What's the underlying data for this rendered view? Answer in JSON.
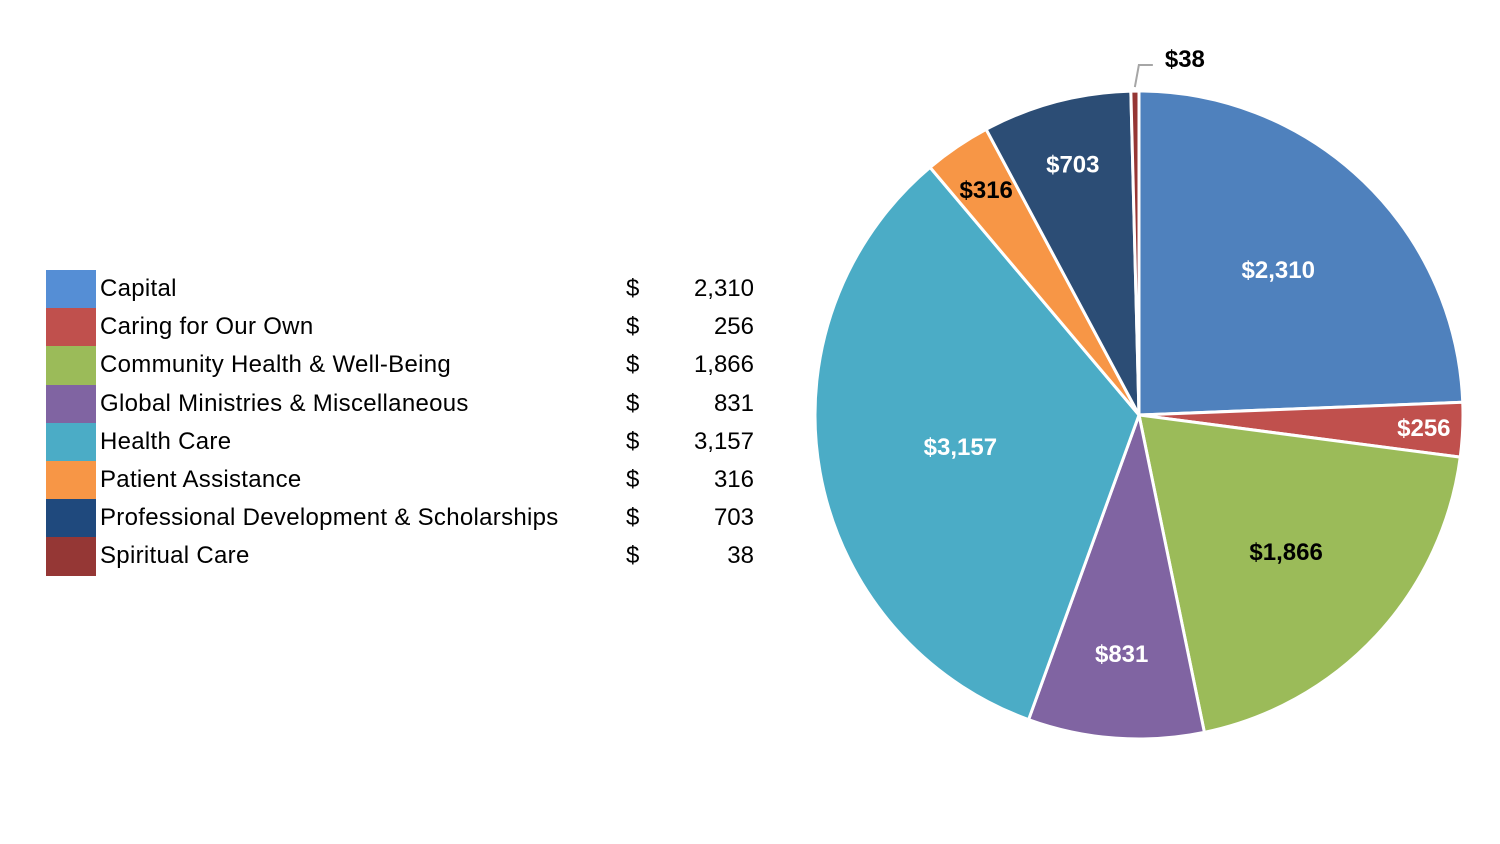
{
  "chart_data": {
    "type": "pie",
    "title": "",
    "categories": [
      "Capital",
      "Caring for Our Own",
      "Community Health & Well-Being",
      "Global Ministries & Miscellaneous",
      "Health Care",
      "Patient Assistance",
      "Professional Development & Scholarships",
      "Spiritual Care"
    ],
    "values": [
      2310,
      256,
      1866,
      831,
      3157,
      316,
      703,
      38
    ],
    "slice_labels": [
      "$2,310",
      "$256",
      "$1,866",
      "$831",
      "$3,157",
      "$316",
      "$703",
      "$38"
    ],
    "slice_label_colors": [
      "#ffffff",
      "#ffffff",
      "#000000",
      "#ffffff",
      "#ffffff",
      "#000000",
      "#ffffff",
      "#000000"
    ],
    "colors": [
      "#4f81bd",
      "#c0504d",
      "#9bbb59",
      "#8064a2",
      "#4bacc6",
      "#f79646",
      "#2c4d75",
      "#963634"
    ],
    "legend_placement": "left",
    "legend": {
      "currency_symbol": "$",
      "display_values": [
        "2,310",
        "256",
        "1,866",
        "831",
        "3,157",
        "316",
        "703",
        "38"
      ],
      "swatch_colors": [
        "#558ed5",
        "#c0504d",
        "#9bbb59",
        "#8064a2",
        "#4bacc6",
        "#f79646",
        "#1f497d",
        "#953735"
      ]
    }
  }
}
